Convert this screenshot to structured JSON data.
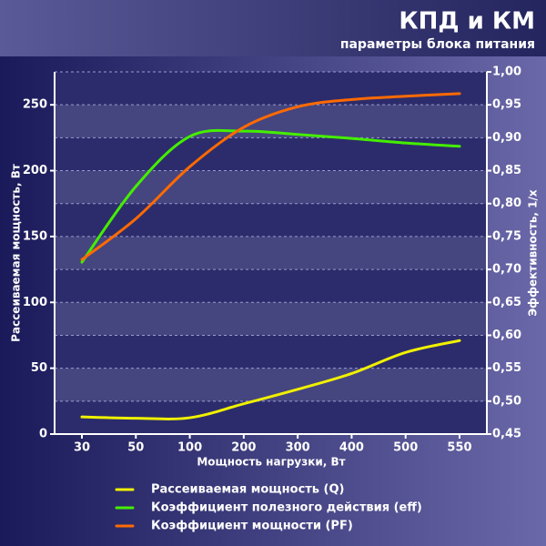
{
  "chart_data": {
    "type": "line",
    "title": "КПД и КМ",
    "subtitle": "параметры блока питания",
    "x_label": "Мощность нагрузки, Вт",
    "y_label": "Рассеиваемая мощность, Вт",
    "y2_label": "Эффективность, 1/x",
    "categories": [
      "30",
      "50",
      "100",
      "200",
      "300",
      "400",
      "500",
      "550"
    ],
    "series": [
      {
        "name": "Рассеиваемая мощность (Q)",
        "color": "#f0f000",
        "values": [
          13,
          12,
          12.4,
          23,
          34,
          46,
          62,
          71
        ]
      },
      {
        "name": "Коэффициент полезного действия (eff)",
        "color": "#44ee00",
        "axis": "y2",
        "values": [
          0.711,
          0.826,
          0.902,
          0.91,
          0.905,
          0.899,
          0.892,
          0.887
        ]
      },
      {
        "name": "Коэффициент мощности (PF)",
        "color": "#ff6a00",
        "axis": "y2",
        "values": [
          0.715,
          0.777,
          0.856,
          0.916,
          0.947,
          0.958,
          0.963,
          0.967
        ]
      }
    ],
    "ylim": [
      0,
      275
    ],
    "yticks": [
      0,
      50,
      100,
      150,
      200,
      250
    ],
    "y2lim": [
      0.45,
      1.0
    ],
    "y2ticks": [
      {
        "value": 0.45,
        "label": "0,45"
      },
      {
        "value": 0.5,
        "label": "0,50"
      },
      {
        "value": 0.55,
        "label": "0,55"
      },
      {
        "value": 0.6,
        "label": "0,60"
      },
      {
        "value": 0.65,
        "label": "0,65"
      },
      {
        "value": 0.7,
        "label": "0,70"
      },
      {
        "value": 0.75,
        "label": "0,75"
      },
      {
        "value": 0.8,
        "label": "0,80"
      },
      {
        "value": 0.85,
        "label": "0,85"
      },
      {
        "value": 0.9,
        "label": "0,90"
      },
      {
        "value": 0.95,
        "label": "0,95"
      },
      {
        "value": 1.0,
        "label": "1,00"
      }
    ],
    "grid": true,
    "legend": "bottom"
  }
}
